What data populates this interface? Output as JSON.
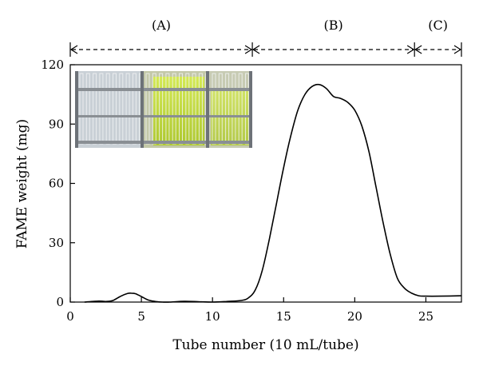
{
  "chart_data": {
    "type": "line",
    "xlabel": "Tube number (10 mL/tube)",
    "ylabel": "FAME weight (mg)",
    "xlim": [
      0,
      27.5
    ],
    "ylim": [
      0,
      120
    ],
    "x_ticks": [
      0,
      5,
      10,
      15,
      20,
      25
    ],
    "y_ticks": [
      0,
      30,
      60,
      90,
      120
    ],
    "x_tick_labels": [
      "0",
      "5",
      "10",
      "15",
      "20",
      "25"
    ],
    "y_tick_labels": [
      "0",
      "30",
      "60",
      "90",
      "120"
    ],
    "grid": false,
    "series": [
      {
        "x": [
          1,
          2,
          2.5,
          3,
          3.5,
          4,
          4.3,
          4.6,
          5,
          5.5,
          6,
          6.5,
          7,
          8,
          9,
          10,
          11,
          12,
          12.5,
          13,
          13.5,
          14,
          14.5,
          15,
          15.5,
          16,
          16.5,
          17,
          17.5,
          18,
          18.5,
          19,
          19.5,
          20,
          20.5,
          21,
          21.5,
          22,
          22.5,
          23,
          23.5,
          24,
          24.5,
          25,
          26,
          27.5
        ],
        "y": [
          0,
          0.5,
          0.3,
          0.8,
          2.8,
          4.3,
          4.5,
          4.2,
          2.8,
          1.0,
          0.3,
          0,
          0,
          0.4,
          0.2,
          0,
          0.3,
          0.8,
          2.0,
          6.0,
          16,
          32,
          50,
          68,
          84,
          97,
          105,
          109,
          110,
          108,
          104,
          103,
          101,
          97,
          89,
          76,
          58,
          40,
          24,
          12,
          7,
          4.5,
          3.2,
          3.0,
          3.0,
          3.2
        ]
      }
    ],
    "regions": [
      {
        "label": "(A)",
        "start": 0,
        "end": 12.8
      },
      {
        "label": "(B)",
        "start": 12.8,
        "end": 24.2
      },
      {
        "label": "(C)",
        "start": 24.2,
        "end": 27.5
      }
    ],
    "inset_photo": "photo of test tube racks with colorless and yellow-green fractions"
  }
}
